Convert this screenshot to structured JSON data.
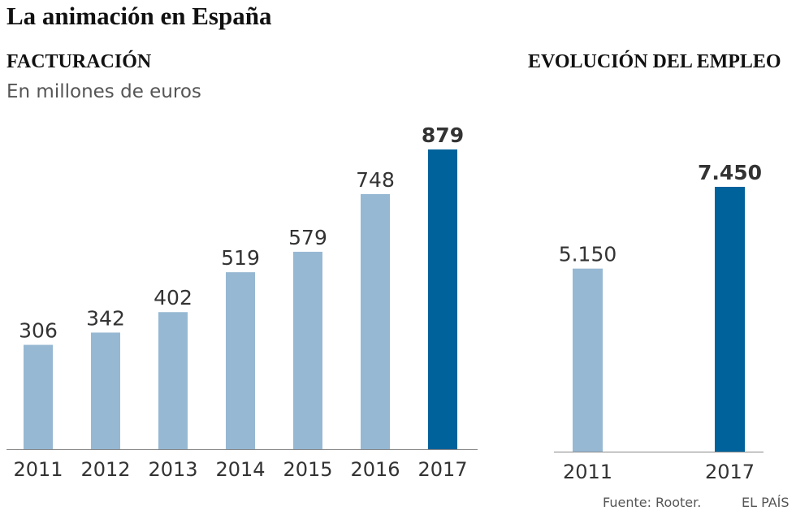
{
  "title": "La animación en España",
  "footer": {
    "source": "Fuente: Rooter.",
    "brand": "EL PAÍS"
  },
  "colors": {
    "light_bar": "#96b8d3",
    "dark_bar": "#00629b",
    "axis": "#888888",
    "text": "#333333"
  },
  "chart_data": [
    {
      "type": "bar",
      "title": "FACTURACIÓN",
      "subtitle": "En millones de euros",
      "categories": [
        "2011",
        "2012",
        "2013",
        "2014",
        "2015",
        "2016",
        "2017"
      ],
      "values": [
        306,
        342,
        402,
        519,
        579,
        748,
        879
      ],
      "labels": [
        "306",
        "342",
        "402",
        "519",
        "579",
        "748",
        "879"
      ],
      "highlight_index": 6,
      "ylim": [
        0,
        900
      ]
    },
    {
      "type": "bar",
      "title": "EVOLUCIÓN DEL EMPLEO",
      "categories": [
        "2011",
        "2017"
      ],
      "values": [
        5150,
        7450
      ],
      "labels": [
        "5.150",
        "7.450"
      ],
      "highlight_index": 1,
      "ylim": [
        0,
        10900
      ]
    }
  ]
}
